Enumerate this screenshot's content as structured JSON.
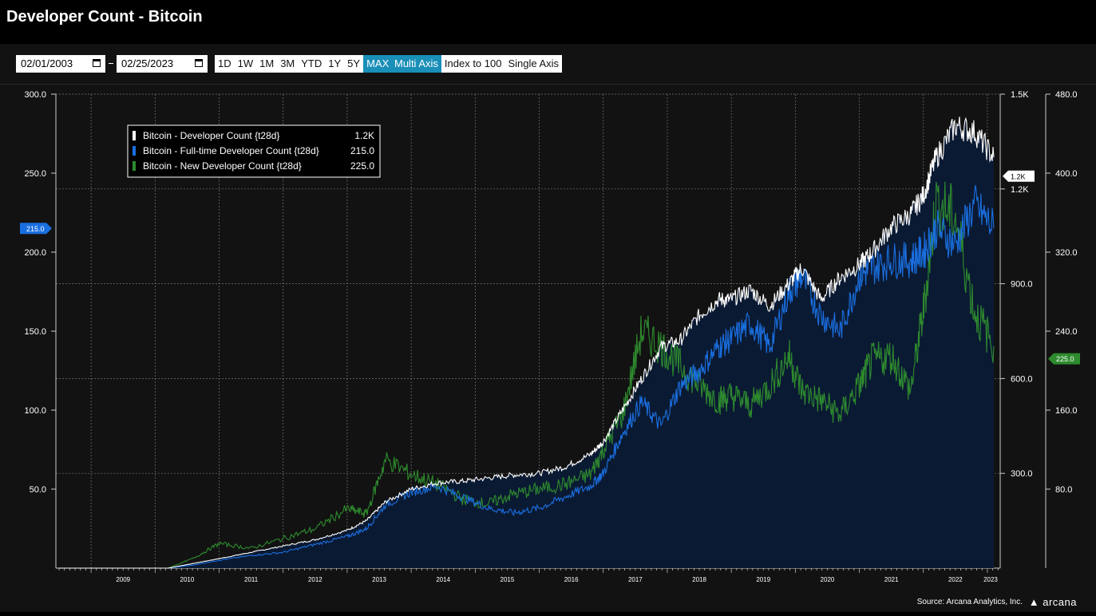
{
  "page_title": "Developer Count - Bitcoin",
  "toolbar": {
    "start_date": "02/01/2003",
    "end_date": "02/25/2023",
    "ranges": [
      "1D",
      "1W",
      "1M",
      "3M",
      "YTD",
      "1Y",
      "5Y",
      "MAX"
    ],
    "active_range": "MAX",
    "modes": [
      "Multi Axis",
      "Index to 100",
      "Single Axis"
    ],
    "active_mode": "Multi Axis"
  },
  "legend": [
    {
      "label": "Bitcoin - Developer Count {t28d}",
      "value": "1.2K",
      "color": "#ffffff"
    },
    {
      "label": "Bitcoin - Full-time Developer Count {t28d}",
      "value": "215.0",
      "color": "#1a6fe0"
    },
    {
      "label": "Bitcoin - New Developer Count {t28d}",
      "value": "225.0",
      "color": "#2e8b2e"
    }
  ],
  "markers": {
    "left": "215.0",
    "right1": "1.2K",
    "right2": "225.0"
  },
  "source": "Source: Arcana Analytics, Inc.",
  "logo": "arcana",
  "colors": {
    "background": "#121212",
    "accent": "#1a8fb8",
    "developer": "#ffffff",
    "fulltime": "#1a6fe0",
    "new": "#2e8b2e",
    "area": "#0b1a33"
  },
  "chart_data": {
    "type": "line",
    "x_ticks": [
      "2009",
      "2010",
      "2011",
      "2012",
      "2013",
      "2014",
      "2015",
      "2016",
      "2017",
      "2018",
      "2019",
      "2020",
      "2021",
      "2022",
      "2023"
    ],
    "left_axis": {
      "ticks": [
        "300.0",
        "250.0",
        "200.0",
        "150.0",
        "100.0",
        "50.0"
      ],
      "ylim": [
        0,
        300
      ]
    },
    "right_axis_1": {
      "ticks": [
        "1.5K",
        "1.2K",
        "900.0",
        "600.0",
        "300.0"
      ],
      "ylim": [
        0,
        1500
      ]
    },
    "right_axis_2": {
      "ticks": [
        "480.0",
        "400.0",
        "320.0",
        "240.0",
        "160.0",
        "80.0"
      ],
      "ylim": [
        0,
        480
      ]
    },
    "series": [
      {
        "name": "Bitcoin - Developer Count {t28d}",
        "axis": "right_axis_1",
        "x": [
          2008.5,
          2009.5,
          2010.2,
          2010.6,
          2011.0,
          2011.5,
          2012.0,
          2012.5,
          2013.0,
          2013.3,
          2013.6,
          2014.0,
          2014.4,
          2014.8,
          2015.2,
          2015.6,
          2016.0,
          2016.4,
          2016.8,
          2017.0,
          2017.3,
          2017.6,
          2017.9,
          2018.2,
          2018.5,
          2018.8,
          2019.0,
          2019.3,
          2019.6,
          2019.9,
          2020.1,
          2020.4,
          2020.7,
          2021.0,
          2021.2,
          2021.5,
          2021.8,
          2022.0,
          2022.2,
          2022.5,
          2022.8,
          2023.1
        ],
        "y": [
          0,
          0,
          0,
          15,
          30,
          50,
          70,
          90,
          120,
          150,
          210,
          250,
          270,
          275,
          285,
          295,
          300,
          320,
          360,
          400,
          500,
          600,
          700,
          720,
          800,
          850,
          850,
          880,
          830,
          900,
          950,
          850,
          920,
          960,
          1000,
          1080,
          1120,
          1180,
          1300,
          1400,
          1380,
          1300
        ]
      },
      {
        "name": "Bitcoin - Full-time Developer Count {t28d}",
        "axis": "left_axis",
        "x": [
          2008.5,
          2009.5,
          2010.2,
          2010.6,
          2011.0,
          2011.5,
          2012.0,
          2012.5,
          2013.0,
          2013.3,
          2013.6,
          2014.0,
          2014.4,
          2014.8,
          2015.2,
          2015.6,
          2016.0,
          2016.4,
          2016.8,
          2017.0,
          2017.3,
          2017.6,
          2017.9,
          2018.2,
          2018.5,
          2018.8,
          2019.0,
          2019.3,
          2019.6,
          2019.9,
          2020.1,
          2020.4,
          2020.7,
          2021.0,
          2021.2,
          2021.5,
          2021.8,
          2022.0,
          2022.2,
          2022.5,
          2022.8,
          2023.1
        ],
        "y": [
          0,
          0,
          0,
          2,
          5,
          8,
          10,
          15,
          20,
          25,
          40,
          48,
          52,
          45,
          38,
          35,
          38,
          45,
          52,
          60,
          85,
          105,
          90,
          115,
          125,
          140,
          145,
          155,
          140,
          175,
          185,
          160,
          150,
          185,
          190,
          195,
          195,
          200,
          215,
          205,
          230,
          215
        ]
      },
      {
        "name": "Bitcoin - New Developer Count {t28d}",
        "axis": "right_axis_2",
        "x": [
          2008.5,
          2009.5,
          2010.2,
          2010.6,
          2011.0,
          2011.5,
          2012.0,
          2012.5,
          2013.0,
          2013.3,
          2013.6,
          2014.0,
          2014.4,
          2014.8,
          2015.2,
          2015.6,
          2016.0,
          2016.4,
          2016.8,
          2017.0,
          2017.3,
          2017.6,
          2017.9,
          2018.2,
          2018.5,
          2018.8,
          2019.0,
          2019.3,
          2019.6,
          2019.9,
          2020.1,
          2020.4,
          2020.7,
          2021.0,
          2021.2,
          2021.5,
          2021.8,
          2022.0,
          2022.2,
          2022.5,
          2022.8,
          2023.1
        ],
        "y": [
          0,
          0,
          0,
          10,
          25,
          20,
          30,
          40,
          60,
          55,
          110,
          95,
          85,
          70,
          65,
          75,
          80,
          85,
          95,
          120,
          155,
          240,
          225,
          205,
          185,
          170,
          175,
          165,
          185,
          215,
          180,
          170,
          155,
          185,
          210,
          215,
          180,
          260,
          370,
          355,
          260,
          225
        ]
      }
    ]
  }
}
